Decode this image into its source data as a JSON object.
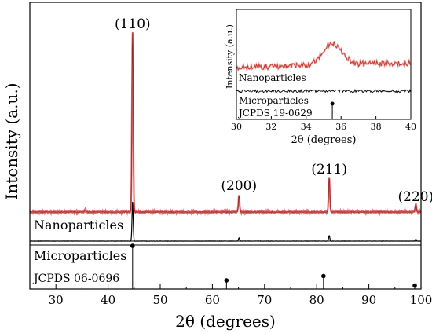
{
  "chart_data": [
    {
      "type": "line",
      "xlabel": "2θ (degrees)",
      "ylabel": "Intensity (a.u.)",
      "xlim": [
        25,
        100
      ],
      "xticks": [
        "30",
        "40",
        "50",
        "60",
        "70",
        "80",
        "90",
        "100"
      ],
      "yticks": "none",
      "grid": false,
      "series": [
        {
          "name": "Nanoparticles",
          "color": "#e07070",
          "peaks": [
            {
              "x": 35.6,
              "rel": 0.012
            },
            {
              "x": 44.7,
              "rel": 1.0
            },
            {
              "x": 65.1,
              "rel": 0.09
            },
            {
              "x": 82.4,
              "rel": 0.19
            },
            {
              "x": 99.0,
              "rel": 0.045
            }
          ]
        },
        {
          "name": "Microparticles",
          "color": "#000000",
          "peaks": [
            {
              "x": 44.7,
              "rel": 1.0
            },
            {
              "x": 65.1,
              "rel": 0.08
            },
            {
              "x": 82.4,
              "rel": 0.14
            },
            {
              "x": 99.0,
              "rel": 0.05
            }
          ]
        }
      ],
      "reference": {
        "name": "JCPDS 06-0696",
        "lines": [
          {
            "x": 44.7,
            "rel": 1.0
          },
          {
            "x": 62.7,
            "rel": 0.2
          },
          {
            "x": 81.3,
            "rel": 0.3
          },
          {
            "x": 98.8,
            "rel": 0.08
          }
        ]
      },
      "annotations": [
        {
          "text": "(110)",
          "x": 44.7
        },
        {
          "text": "(200)",
          "x": 65.1
        },
        {
          "text": "(211)",
          "x": 82.4
        },
        {
          "text": "(220)",
          "x": 99.0
        }
      ]
    },
    {
      "type": "line",
      "inset": true,
      "xlabel": "2θ (degrees)",
      "ylabel": "Intensity (a.u.)",
      "xlim": [
        30,
        40
      ],
      "xticks": [
        "30",
        "32",
        "34",
        "36",
        "38",
        "40"
      ],
      "yticks": "none",
      "grid": false,
      "series": [
        {
          "name": "Nanoparticles",
          "color": "#c0392b",
          "peak": {
            "x": 35.5,
            "rel": 0.5
          }
        },
        {
          "name": "Microparticles",
          "color": "#000000",
          "peak": null
        }
      ],
      "reference": {
        "name": "JCPDS 19-0629",
        "lines": [
          {
            "x": 35.5,
            "rel": 1.0
          }
        ]
      }
    }
  ]
}
